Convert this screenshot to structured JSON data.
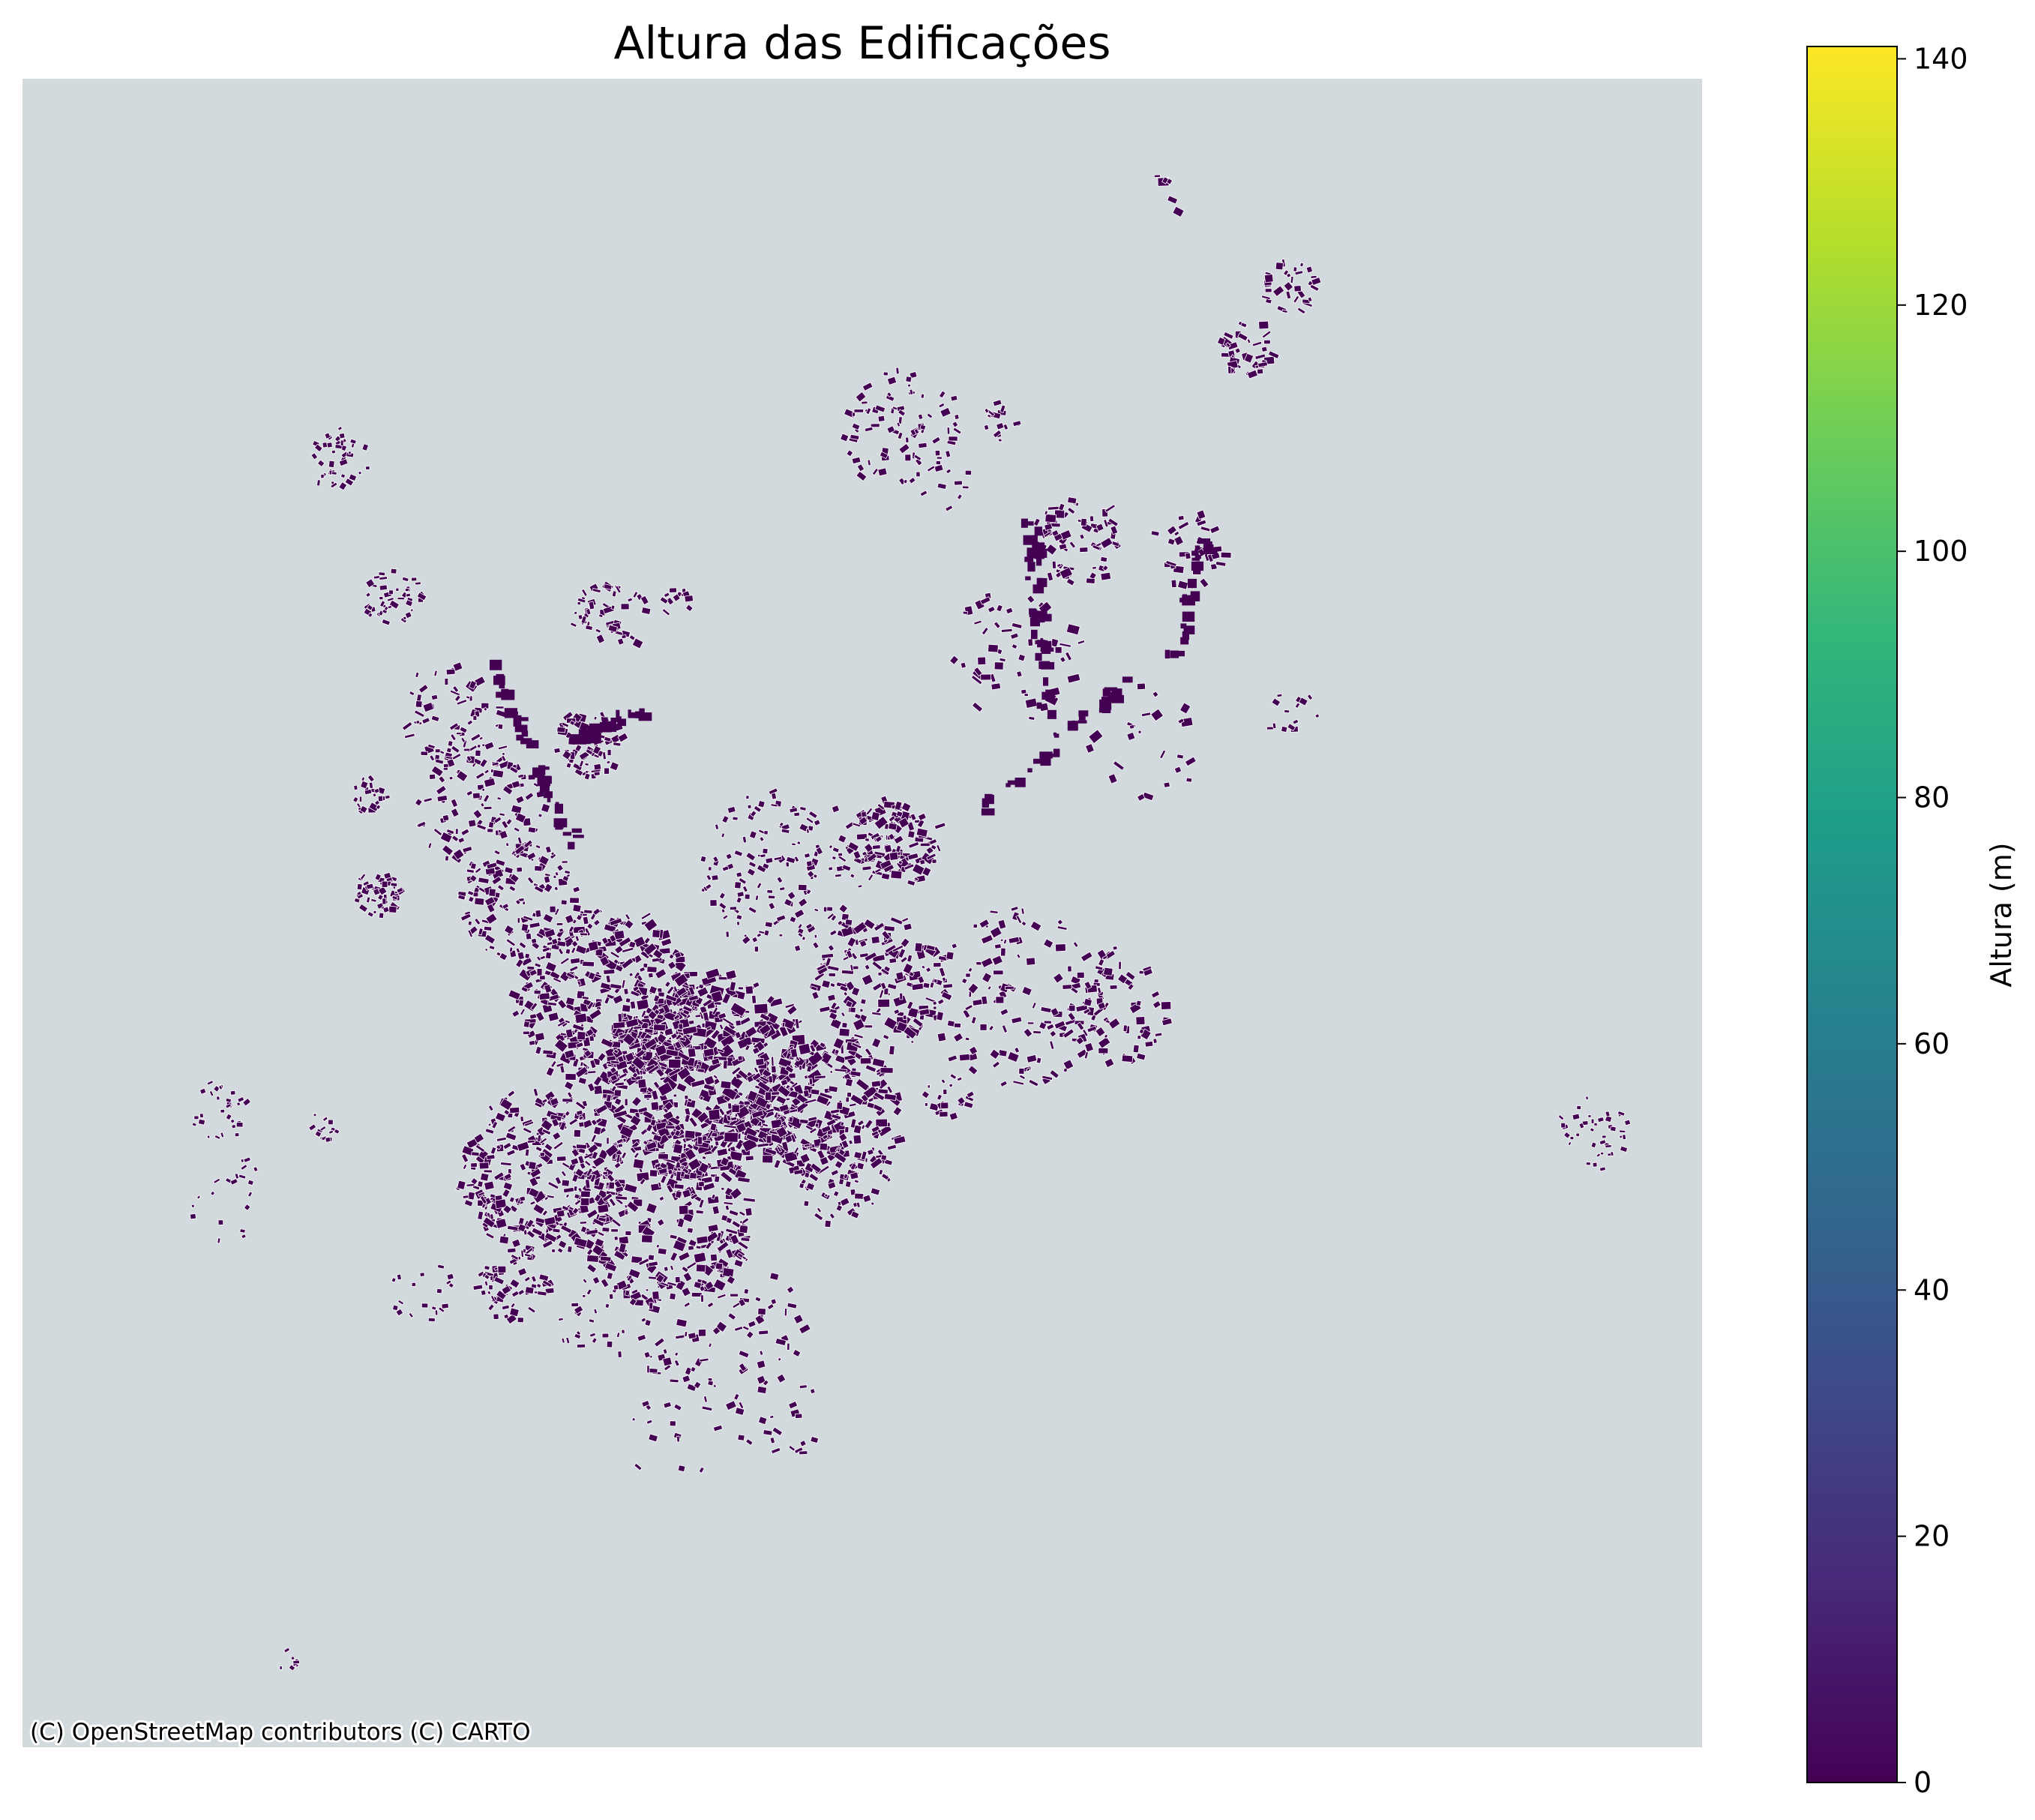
{
  "title": "Altura das Edificações",
  "attribution": "(C) OpenStreetMap contributors (C) CARTO",
  "colors": {
    "basemap": "#d3dadd",
    "building_fill": "#440154",
    "building_edge": "#ffffff"
  },
  "colorbar": {
    "label": "Altura (m)",
    "colormap": "viridis",
    "min": 0,
    "max": 141,
    "ticks": [
      "0",
      "20",
      "40",
      "60",
      "80",
      "100",
      "120",
      "140"
    ],
    "stops": [
      "#440154",
      "#482878",
      "#3e4989",
      "#31688e",
      "#26828e",
      "#1f9e89",
      "#35b779",
      "#6ece58",
      "#b5de2b",
      "#fde725"
    ]
  }
}
